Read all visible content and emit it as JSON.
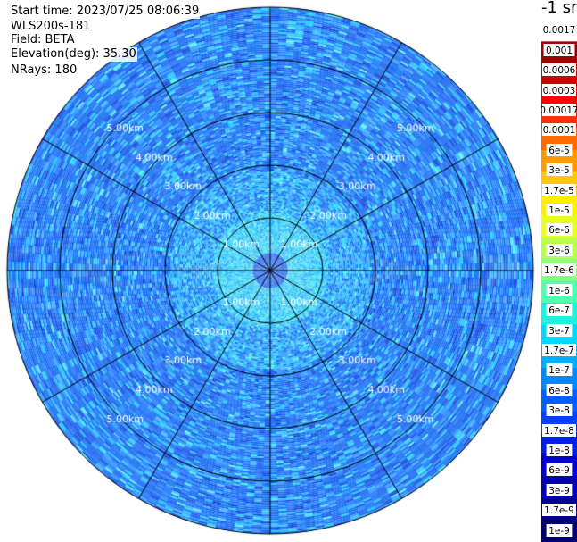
{
  "header": {
    "start_time": "Start time: 2023/07/25 08:06:39",
    "instrument": "WLS200s-181",
    "field": "Field: BETA",
    "elevation": "Elevation(deg): 35.30",
    "nrays": "NRays: 180"
  },
  "colorbar": {
    "title_partial": "-1 sr",
    "ticks": [
      "0.0017",
      "0.001",
      "0.0006",
      "0.0003",
      "0.00017",
      "0.0001",
      "6e-5",
      "3e-5",
      "1.7e-5",
      "1e-5",
      "6e-6",
      "3e-6",
      "1.7e-6",
      "1e-6",
      "6e-7",
      "3e-7",
      "1.7e-7",
      "1e-7",
      "6e-8",
      "3e-8",
      "1.7e-8",
      "1e-8",
      "6e-9",
      "3e-9",
      "1.7e-9",
      "1e-9"
    ],
    "colors": [
      "#ffffff",
      "#a00000",
      "#d00000",
      "#ff0000",
      "#ff3000",
      "#ff6a00",
      "#ff9a00",
      "#ffc800",
      "#ffee00",
      "#e8ff20",
      "#b8ff50",
      "#88ff80",
      "#50ffb0",
      "#20f0e0",
      "#00d8ff",
      "#00b0ff",
      "#0088ff",
      "#0060ff",
      "#0040ff",
      "#0020e0",
      "#0000d0",
      "#0000b0",
      "#000090",
      "#000070"
    ]
  },
  "chart_data": {
    "type": "heatmap",
    "projection": "polar PPI",
    "rings_km": [
      1,
      2,
      3,
      4,
      5
    ],
    "ring_labels": [
      "1.00km",
      "2.00km",
      "3.00km",
      "4.00km",
      "5.00km"
    ],
    "max_range_km": 5.0,
    "radial_spokes_deg": [
      0,
      30,
      60,
      90,
      120,
      150,
      180,
      210,
      240,
      270,
      300,
      330
    ],
    "n_rays": 180,
    "field": "BETA",
    "value_description": "backscatter coefficient, mostly between 1e-7 and 6e-8 (blue) beyond ~1.5 km, 1.7e-7 to 3e-7 (cyan) near center",
    "center_value": "1e-8",
    "near_range_value": "1.7e-7",
    "far_range_value": "6e-8"
  }
}
